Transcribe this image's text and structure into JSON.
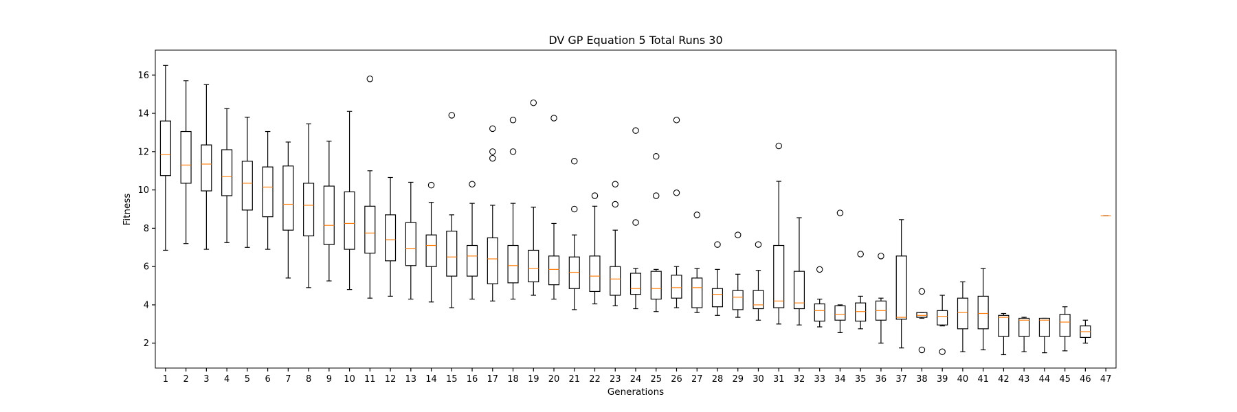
{
  "chart_data": {
    "type": "boxplot",
    "title": "DV GP Equation 5 Total Runs 30",
    "xlabel": "Generations",
    "ylabel": "Fitness",
    "xlim": [
      0.5,
      47.5
    ],
    "ylim": [
      0.7,
      17.3
    ],
    "yticks": [
      2,
      4,
      6,
      8,
      10,
      12,
      14,
      16
    ],
    "grid": false,
    "colors": {
      "box": "#000000",
      "median": "#ff7f0e",
      "flier": "#000000"
    },
    "boxes": [
      {
        "x": 1,
        "whislo": 6.85,
        "q1": 10.75,
        "med": 11.85,
        "q3": 13.6,
        "whishi": 16.5,
        "fliers": []
      },
      {
        "x": 2,
        "whislo": 7.2,
        "q1": 10.35,
        "med": 11.3,
        "q3": 13.05,
        "whishi": 15.7,
        "fliers": []
      },
      {
        "x": 3,
        "whislo": 6.9,
        "q1": 9.95,
        "med": 11.35,
        "q3": 12.35,
        "whishi": 15.5,
        "fliers": []
      },
      {
        "x": 4,
        "whislo": 7.25,
        "q1": 9.7,
        "med": 10.7,
        "q3": 12.1,
        "whishi": 14.25,
        "fliers": []
      },
      {
        "x": 5,
        "whislo": 7.0,
        "q1": 8.95,
        "med": 10.35,
        "q3": 11.5,
        "whishi": 13.8,
        "fliers": []
      },
      {
        "x": 6,
        "whislo": 6.9,
        "q1": 8.6,
        "med": 10.15,
        "q3": 11.2,
        "whishi": 13.05,
        "fliers": []
      },
      {
        "x": 7,
        "whislo": 5.4,
        "q1": 7.9,
        "med": 9.25,
        "q3": 11.25,
        "whishi": 12.5,
        "fliers": []
      },
      {
        "x": 8,
        "whislo": 4.9,
        "q1": 7.6,
        "med": 9.2,
        "q3": 10.35,
        "whishi": 13.45,
        "fliers": []
      },
      {
        "x": 9,
        "whislo": 5.25,
        "q1": 7.15,
        "med": 8.15,
        "q3": 10.2,
        "whishi": 12.55,
        "fliers": []
      },
      {
        "x": 10,
        "whislo": 4.8,
        "q1": 6.9,
        "med": 8.25,
        "q3": 9.9,
        "whishi": 14.1,
        "fliers": []
      },
      {
        "x": 11,
        "whislo": 4.35,
        "q1": 6.7,
        "med": 7.75,
        "q3": 9.15,
        "whishi": 11.0,
        "fliers": [
          15.8
        ]
      },
      {
        "x": 12,
        "whislo": 4.45,
        "q1": 6.3,
        "med": 7.4,
        "q3": 8.7,
        "whishi": 10.65,
        "fliers": []
      },
      {
        "x": 13,
        "whislo": 4.3,
        "q1": 6.05,
        "med": 6.95,
        "q3": 8.3,
        "whishi": 10.4,
        "fliers": []
      },
      {
        "x": 14,
        "whislo": 4.15,
        "q1": 6.0,
        "med": 7.1,
        "q3": 7.65,
        "whishi": 9.35,
        "fliers": [
          10.25
        ]
      },
      {
        "x": 15,
        "whislo": 3.85,
        "q1": 5.5,
        "med": 6.5,
        "q3": 7.85,
        "whishi": 8.7,
        "fliers": [
          13.9
        ]
      },
      {
        "x": 16,
        "whislo": 4.3,
        "q1": 5.5,
        "med": 6.55,
        "q3": 7.1,
        "whishi": 9.3,
        "fliers": [
          10.3
        ]
      },
      {
        "x": 17,
        "whislo": 4.2,
        "q1": 5.1,
        "med": 6.4,
        "q3": 7.5,
        "whishi": 9.2,
        "fliers": [
          13.2,
          12.0,
          11.65
        ]
      },
      {
        "x": 18,
        "whislo": 4.3,
        "q1": 5.15,
        "med": 6.05,
        "q3": 7.1,
        "whishi": 9.3,
        "fliers": [
          13.65,
          12.0
        ]
      },
      {
        "x": 19,
        "whislo": 4.5,
        "q1": 5.2,
        "med": 5.9,
        "q3": 6.85,
        "whishi": 9.1,
        "fliers": [
          14.55
        ]
      },
      {
        "x": 20,
        "whislo": 4.3,
        "q1": 5.05,
        "med": 5.85,
        "q3": 6.55,
        "whishi": 8.25,
        "fliers": [
          13.75
        ]
      },
      {
        "x": 21,
        "whislo": 3.75,
        "q1": 4.85,
        "med": 5.7,
        "q3": 6.5,
        "whishi": 7.65,
        "fliers": [
          11.5,
          9.0
        ]
      },
      {
        "x": 22,
        "whislo": 4.05,
        "q1": 4.7,
        "med": 5.5,
        "q3": 6.55,
        "whishi": 9.15,
        "fliers": [
          9.7
        ]
      },
      {
        "x": 23,
        "whislo": 3.95,
        "q1": 4.5,
        "med": 5.35,
        "q3": 6.0,
        "whishi": 7.9,
        "fliers": [
          10.3,
          9.25
        ]
      },
      {
        "x": 24,
        "whislo": 3.8,
        "q1": 4.55,
        "med": 4.85,
        "q3": 5.65,
        "whishi": 5.9,
        "fliers": [
          13.1,
          8.3
        ]
      },
      {
        "x": 25,
        "whislo": 3.65,
        "q1": 4.3,
        "med": 4.85,
        "q3": 5.75,
        "whishi": 5.85,
        "fliers": [
          11.75,
          9.7
        ]
      },
      {
        "x": 26,
        "whislo": 3.85,
        "q1": 4.35,
        "med": 4.9,
        "q3": 5.55,
        "whishi": 6.0,
        "fliers": [
          13.65,
          9.85
        ]
      },
      {
        "x": 27,
        "whislo": 3.6,
        "q1": 3.85,
        "med": 4.9,
        "q3": 5.4,
        "whishi": 5.9,
        "fliers": [
          8.7
        ]
      },
      {
        "x": 28,
        "whislo": 3.45,
        "q1": 3.9,
        "med": 4.55,
        "q3": 4.85,
        "whishi": 5.85,
        "fliers": [
          7.15
        ]
      },
      {
        "x": 29,
        "whislo": 3.35,
        "q1": 3.75,
        "med": 4.4,
        "q3": 4.75,
        "whishi": 5.6,
        "fliers": [
          7.65
        ]
      },
      {
        "x": 30,
        "whislo": 3.2,
        "q1": 3.8,
        "med": 4.0,
        "q3": 4.75,
        "whishi": 5.8,
        "fliers": [
          7.15
        ]
      },
      {
        "x": 31,
        "whislo": 3.0,
        "q1": 3.85,
        "med": 4.2,
        "q3": 7.1,
        "whishi": 10.45,
        "fliers": [
          12.3
        ]
      },
      {
        "x": 32,
        "whislo": 2.95,
        "q1": 3.8,
        "med": 4.1,
        "q3": 5.75,
        "whishi": 8.55,
        "fliers": []
      },
      {
        "x": 33,
        "whislo": 2.85,
        "q1": 3.15,
        "med": 3.7,
        "q3": 4.05,
        "whishi": 4.3,
        "fliers": [
          5.85
        ]
      },
      {
        "x": 34,
        "whislo": 2.55,
        "q1": 3.2,
        "med": 3.5,
        "q3": 3.95,
        "whishi": 4.0,
        "fliers": [
          8.8
        ]
      },
      {
        "x": 35,
        "whislo": 2.75,
        "q1": 3.15,
        "med": 3.65,
        "q3": 4.1,
        "whishi": 4.45,
        "fliers": [
          6.65
        ]
      },
      {
        "x": 36,
        "whislo": 2.0,
        "q1": 3.2,
        "med": 3.7,
        "q3": 4.2,
        "whishi": 4.35,
        "fliers": [
          6.55
        ]
      },
      {
        "x": 37,
        "whislo": 1.75,
        "q1": 3.25,
        "med": 3.35,
        "q3": 6.55,
        "whishi": 8.45,
        "fliers": []
      },
      {
        "x": 38,
        "whislo": 3.3,
        "q1": 3.35,
        "med": 3.45,
        "q3": 3.6,
        "whishi": 3.6,
        "fliers": [
          4.7,
          1.65
        ]
      },
      {
        "x": 39,
        "whislo": 2.9,
        "q1": 2.95,
        "med": 3.4,
        "q3": 3.7,
        "whishi": 4.5,
        "fliers": [
          1.55
        ]
      },
      {
        "x": 40,
        "whislo": 1.55,
        "q1": 2.75,
        "med": 3.6,
        "q3": 4.35,
        "whishi": 5.2,
        "fliers": []
      },
      {
        "x": 41,
        "whislo": 1.65,
        "q1": 2.75,
        "med": 3.55,
        "q3": 4.45,
        "whishi": 5.9,
        "fliers": []
      },
      {
        "x": 42,
        "whislo": 1.4,
        "q1": 2.35,
        "med": 3.35,
        "q3": 3.45,
        "whishi": 3.55,
        "fliers": []
      },
      {
        "x": 43,
        "whislo": 1.55,
        "q1": 2.35,
        "med": 3.2,
        "q3": 3.3,
        "whishi": 3.35,
        "fliers": []
      },
      {
        "x": 44,
        "whislo": 1.5,
        "q1": 2.35,
        "med": 3.2,
        "q3": 3.3,
        "whishi": 3.3,
        "fliers": []
      },
      {
        "x": 45,
        "whislo": 1.6,
        "q1": 2.35,
        "med": 3.1,
        "q3": 3.5,
        "whishi": 3.9,
        "fliers": []
      },
      {
        "x": 46,
        "whislo": 2.0,
        "q1": 2.3,
        "med": 2.6,
        "q3": 2.9,
        "whishi": 3.2,
        "fliers": []
      },
      {
        "x": 47,
        "whislo": 8.65,
        "q1": 8.65,
        "med": 8.65,
        "q3": 8.65,
        "whishi": 8.65,
        "fliers": []
      }
    ]
  }
}
